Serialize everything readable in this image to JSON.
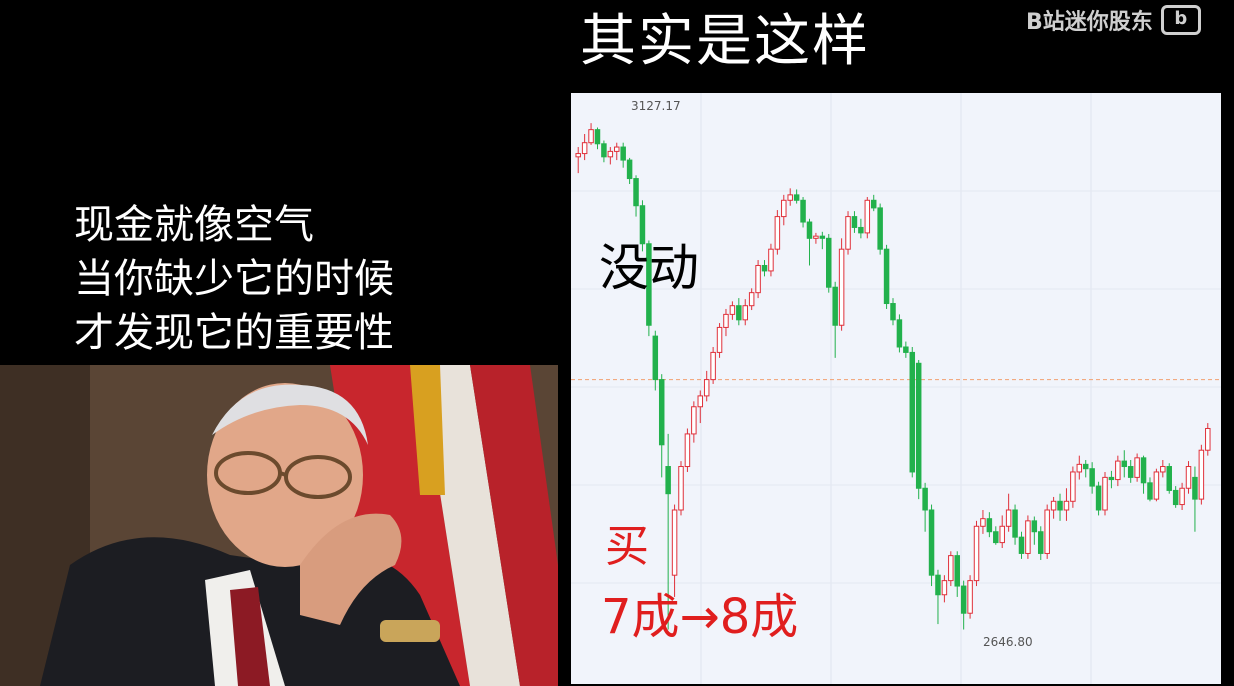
{
  "title": "其实是这样",
  "watermark": {
    "text": "B站迷你股东",
    "logo": "bili"
  },
  "quote": {
    "lines": [
      "现金就像空气",
      "当你缺少它的时候",
      "才发现它的重要性"
    ]
  },
  "chart": {
    "high_label": "3127.17",
    "low_label": "2646.80",
    "annotation_still": "没动",
    "annotation_buy": "买",
    "annotation_position": "7成→8成",
    "up_color": "#e0303a",
    "down_color": "#22b14c"
  },
  "chart_data": {
    "type": "candlestick",
    "y_range": [
      2646.8,
      3127.17
    ],
    "high": 3127.17,
    "low": 2646.8,
    "reference_line": 2880,
    "candles": [
      [
        3085,
        3088,
        3070,
        3094
      ],
      [
        3088,
        3098,
        3082,
        3106
      ],
      [
        3098,
        3110,
        3096,
        3116
      ],
      [
        3110,
        3097,
        3092,
        3112
      ],
      [
        3097,
        3085,
        3080,
        3100
      ],
      [
        3085,
        3090,
        3078,
        3094
      ],
      [
        3090,
        3094,
        3082,
        3098
      ],
      [
        3094,
        3082,
        3075,
        3098
      ],
      [
        3082,
        3065,
        3060,
        3084
      ],
      [
        3065,
        3040,
        3030,
        3068
      ],
      [
        3040,
        3005,
        2998,
        3045
      ],
      [
        3005,
        2930,
        2920,
        3008
      ],
      [
        2920,
        2880,
        2870,
        2925
      ],
      [
        2880,
        2820,
        2790,
        2885
      ],
      [
        2800,
        2775,
        2650,
        2830
      ],
      [
        2700,
        2760,
        2680,
        2765
      ],
      [
        2760,
        2800,
        2755,
        2805
      ],
      [
        2800,
        2830,
        2795,
        2835
      ],
      [
        2830,
        2855,
        2822,
        2860
      ],
      [
        2855,
        2865,
        2840,
        2870
      ],
      [
        2865,
        2880,
        2860,
        2888
      ],
      [
        2880,
        2905,
        2876,
        2910
      ],
      [
        2905,
        2928,
        2900,
        2932
      ],
      [
        2928,
        2940,
        2920,
        2945
      ],
      [
        2940,
        2948,
        2935,
        2952
      ],
      [
        2948,
        2935,
        2930,
        2955
      ],
      [
        2935,
        2948,
        2930,
        2954
      ],
      [
        2948,
        2960,
        2944,
        2964
      ],
      [
        2960,
        2985,
        2955,
        2990
      ],
      [
        2985,
        2980,
        2975,
        2990
      ],
      [
        2980,
        3000,
        2975,
        3005
      ],
      [
        3000,
        3030,
        2995,
        3036
      ],
      [
        3030,
        3045,
        3022,
        3050
      ],
      [
        3045,
        3050,
        3040,
        3056
      ],
      [
        3050,
        3045,
        3042,
        3055
      ],
      [
        3045,
        3025,
        3020,
        3048
      ],
      [
        3025,
        3010,
        2985,
        3028
      ],
      [
        3010,
        3012,
        3005,
        3015
      ],
      [
        3012,
        3010,
        3000,
        3016
      ],
      [
        3010,
        2965,
        2960,
        3014
      ],
      [
        2965,
        2930,
        2900,
        2970
      ],
      [
        2930,
        3000,
        2925,
        3010
      ],
      [
        3000,
        3030,
        2995,
        3035
      ],
      [
        3030,
        3020,
        3015,
        3035
      ],
      [
        3020,
        3015,
        3010,
        3028
      ],
      [
        3015,
        3045,
        3010,
        3048
      ],
      [
        3045,
        3038,
        3035,
        3050
      ],
      [
        3038,
        3000,
        2995,
        3042
      ],
      [
        3000,
        2950,
        2945,
        3004
      ],
      [
        2950,
        2935,
        2930,
        2955
      ],
      [
        2935,
        2910,
        2905,
        2940
      ],
      [
        2910,
        2905,
        2900,
        2915
      ],
      [
        2905,
        2795,
        2790,
        2910
      ],
      [
        2895,
        2780,
        2770,
        2898
      ],
      [
        2780,
        2760,
        2740,
        2785
      ],
      [
        2760,
        2700,
        2690,
        2765
      ],
      [
        2700,
        2682,
        2655,
        2705
      ],
      [
        2682,
        2695,
        2675,
        2700
      ],
      [
        2695,
        2718,
        2690,
        2722
      ],
      [
        2718,
        2690,
        2680,
        2722
      ],
      [
        2690,
        2665,
        2650,
        2695
      ],
      [
        2665,
        2695,
        2660,
        2700
      ],
      [
        2695,
        2745,
        2690,
        2750
      ],
      [
        2745,
        2752,
        2738,
        2760
      ],
      [
        2752,
        2740,
        2735,
        2758
      ],
      [
        2740,
        2730,
        2728,
        2745
      ],
      [
        2730,
        2745,
        2725,
        2755
      ],
      [
        2745,
        2760,
        2740,
        2775
      ],
      [
        2760,
        2735,
        2728,
        2765
      ],
      [
        2735,
        2720,
        2715,
        2740
      ],
      [
        2720,
        2750,
        2715,
        2755
      ],
      [
        2750,
        2740,
        2728,
        2754
      ],
      [
        2740,
        2720,
        2714,
        2745
      ],
      [
        2720,
        2760,
        2715,
        2765
      ],
      [
        2760,
        2768,
        2752,
        2772
      ],
      [
        2768,
        2760,
        2750,
        2775
      ],
      [
        2760,
        2768,
        2750,
        2780
      ],
      [
        2768,
        2795,
        2762,
        2800
      ],
      [
        2795,
        2802,
        2788,
        2810
      ],
      [
        2802,
        2798,
        2790,
        2806
      ],
      [
        2798,
        2782,
        2775,
        2804
      ],
      [
        2782,
        2760,
        2755,
        2786
      ],
      [
        2760,
        2790,
        2755,
        2795
      ],
      [
        2790,
        2788,
        2780,
        2796
      ],
      [
        2788,
        2805,
        2782,
        2810
      ],
      [
        2805,
        2800,
        2790,
        2815
      ],
      [
        2800,
        2790,
        2785,
        2806
      ],
      [
        2790,
        2808,
        2786,
        2812
      ],
      [
        2808,
        2785,
        2775,
        2810
      ],
      [
        2785,
        2770,
        2768,
        2790
      ],
      [
        2770,
        2795,
        2768,
        2798
      ],
      [
        2795,
        2800,
        2790,
        2806
      ],
      [
        2800,
        2778,
        2775,
        2803
      ],
      [
        2778,
        2765,
        2762,
        2782
      ],
      [
        2765,
        2780,
        2760,
        2785
      ],
      [
        2780,
        2800,
        2775,
        2805
      ],
      [
        2790,
        2770,
        2740,
        2800
      ],
      [
        2770,
        2815,
        2765,
        2820
      ],
      [
        2815,
        2835,
        2810,
        2840
      ]
    ]
  }
}
